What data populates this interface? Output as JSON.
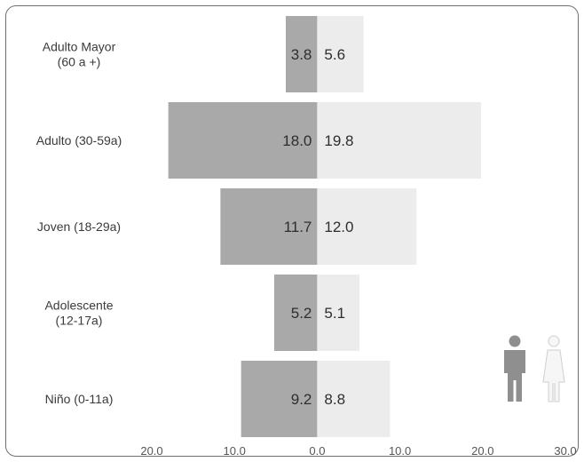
{
  "chart_data": {
    "type": "bar",
    "orientation": "horizontal",
    "layout": "population-pyramid",
    "categories": [
      [
        "Adulto Mayor",
        "(60 a +)"
      ],
      [
        "Adulto (30-59a)"
      ],
      [
        "Joven (18-29a)"
      ],
      [
        "Adolescente",
        "(12-17a)"
      ],
      [
        "Niño (0-11a)"
      ]
    ],
    "series": [
      {
        "side": "left",
        "color": "#a9a9a9",
        "values": [
          3.8,
          18.0,
          11.7,
          5.2,
          9.2
        ],
        "labels": [
          "3.8",
          "18.0",
          "11.7",
          "5.2",
          "9.2"
        ]
      },
      {
        "side": "right",
        "color": "#ececec",
        "values": [
          5.6,
          19.8,
          12.0,
          5.1,
          8.8
        ],
        "labels": [
          "5.6",
          "19.8",
          "12.0",
          "5.1",
          "8.8"
        ]
      }
    ],
    "x_ticks": [
      {
        "value": -20,
        "label": "20.0"
      },
      {
        "value": -10,
        "label": "10.0"
      },
      {
        "value": 0,
        "label": "0.0"
      },
      {
        "value": 10,
        "label": "10.0"
      },
      {
        "value": 20,
        "label": "20.0"
      },
      {
        "value": 30,
        "label": "30.0"
      }
    ],
    "xlim": [
      -20,
      30
    ],
    "title": "",
    "xlabel": "",
    "ylabel": "",
    "grid": false,
    "legend": {
      "type": "icons",
      "placement": "right",
      "icons": [
        "male-figure-icon",
        "female-figure-icon"
      ]
    }
  }
}
